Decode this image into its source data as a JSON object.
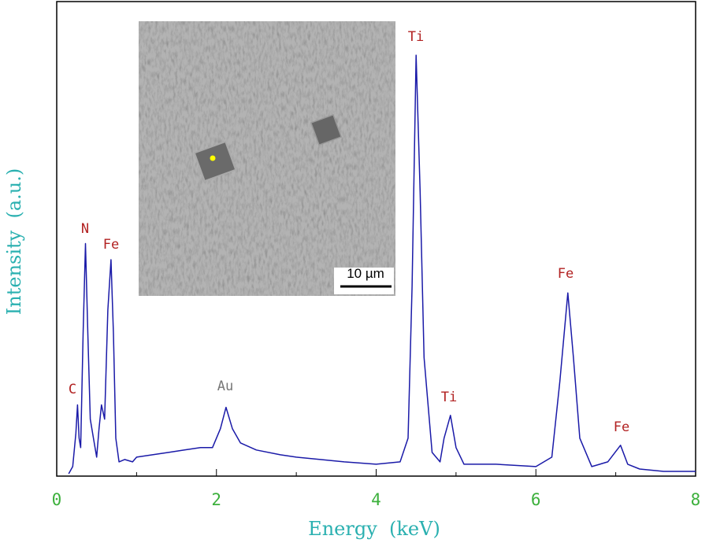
{
  "chart_data": {
    "type": "line",
    "x_label": "Energy  (keV)",
    "y_label": "Intensity  (a.u.)",
    "xlim": [
      0,
      8
    ],
    "xticks": [
      0,
      2,
      4,
      6,
      8
    ],
    "xminorticks": [
      1,
      3,
      5,
      7
    ],
    "ylim": [
      0,
      100
    ],
    "series": [
      {
        "color": "#1a1aa8",
        "x": [
          0.15,
          0.2,
          0.24,
          0.26,
          0.28,
          0.3,
          0.33,
          0.36,
          0.39,
          0.42,
          0.46,
          0.5,
          0.53,
          0.56,
          0.6,
          0.64,
          0.68,
          0.71,
          0.74,
          0.78,
          0.85,
          0.95,
          1.0,
          1.2,
          1.4,
          1.6,
          1.8,
          1.95,
          2.05,
          2.12,
          2.2,
          2.3,
          2.5,
          2.8,
          3.0,
          3.3,
          3.6,
          4.0,
          4.3,
          4.4,
          4.45,
          4.5,
          4.55,
          4.6,
          4.7,
          4.8,
          4.85,
          4.93,
          5.0,
          5.1,
          5.5,
          6.0,
          6.2,
          6.3,
          6.4,
          6.47,
          6.55,
          6.7,
          6.9,
          7.06,
          7.15,
          7.3,
          7.6,
          8.0
        ],
        "values": [
          0.5,
          2,
          9,
          15,
          8,
          6,
          30,
          49,
          30,
          12,
          8,
          4,
          10,
          15,
          12,
          35,
          45.6,
          30,
          8,
          3,
          3.5,
          3,
          4,
          4.5,
          5,
          5.5,
          6,
          6,
          10,
          14.5,
          10,
          7,
          5.5,
          4.5,
          4,
          3.5,
          3,
          2.5,
          3,
          8,
          40,
          88.7,
          60,
          25,
          5,
          3,
          8,
          12.8,
          6,
          2.5,
          2.5,
          2,
          4,
          20,
          38.6,
          25,
          8,
          2,
          3,
          6.5,
          2.5,
          1.5,
          1,
          1
        ]
      }
    ],
    "annotations": [
      "C",
      "N",
      "Fe",
      "Au",
      "Ti",
      "Ti",
      "Fe",
      "Fe"
    ],
    "inset": {
      "scale_bar": "10 µm"
    }
  }
}
